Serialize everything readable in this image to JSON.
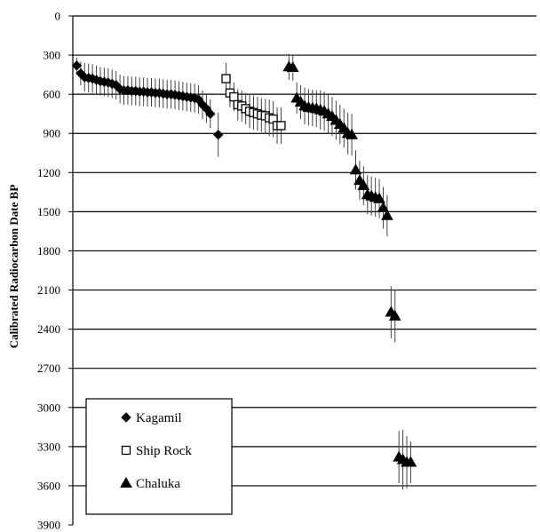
{
  "chart_data": {
    "type": "scatter",
    "title": "",
    "xlabel": "",
    "ylabel": "Calibrated Radiocarbon Date BP",
    "y_inverted": true,
    "ylim": [
      0,
      3900
    ],
    "yticks": [
      0,
      300,
      600,
      900,
      1200,
      1500,
      1800,
      2100,
      2400,
      2700,
      3000,
      3300,
      3600,
      3900
    ],
    "ytick_labels": [
      "0",
      "300",
      "600",
      "900",
      "1200",
      "1500",
      "1800",
      "2100",
      "2400",
      "2700",
      "3000",
      "3300",
      "3600",
      "3900"
    ],
    "xlim": [
      0,
      118
    ],
    "grid": "horizontal",
    "legend_position": "bottom-left",
    "series": [
      {
        "name": "Kagamil",
        "marker": "diamond",
        "filled": true,
        "points": [
          {
            "x": 1,
            "y": 380,
            "err": 60
          },
          {
            "x": 2,
            "y": 440,
            "err": 90
          },
          {
            "x": 3,
            "y": 470,
            "err": 110
          },
          {
            "x": 4,
            "y": 475,
            "err": 110
          },
          {
            "x": 5,
            "y": 480,
            "err": 110
          },
          {
            "x": 6,
            "y": 490,
            "err": 110
          },
          {
            "x": 7,
            "y": 500,
            "err": 110
          },
          {
            "x": 8,
            "y": 505,
            "err": 110
          },
          {
            "x": 9,
            "y": 510,
            "err": 110
          },
          {
            "x": 10,
            "y": 520,
            "err": 110
          },
          {
            "x": 11,
            "y": 530,
            "err": 110
          },
          {
            "x": 12,
            "y": 560,
            "err": 110
          },
          {
            "x": 13,
            "y": 570,
            "err": 110
          },
          {
            "x": 14,
            "y": 570,
            "err": 110
          },
          {
            "x": 15,
            "y": 575,
            "err": 110
          },
          {
            "x": 16,
            "y": 575,
            "err": 110
          },
          {
            "x": 17,
            "y": 580,
            "err": 110
          },
          {
            "x": 18,
            "y": 580,
            "err": 110
          },
          {
            "x": 19,
            "y": 585,
            "err": 110
          },
          {
            "x": 20,
            "y": 585,
            "err": 110
          },
          {
            "x": 21,
            "y": 590,
            "err": 110
          },
          {
            "x": 22,
            "y": 590,
            "err": 110
          },
          {
            "x": 23,
            "y": 595,
            "err": 110
          },
          {
            "x": 24,
            "y": 600,
            "err": 110
          },
          {
            "x": 25,
            "y": 600,
            "err": 110
          },
          {
            "x": 26,
            "y": 605,
            "err": 110
          },
          {
            "x": 27,
            "y": 610,
            "err": 110
          },
          {
            "x": 28,
            "y": 615,
            "err": 110
          },
          {
            "x": 29,
            "y": 620,
            "err": 110
          },
          {
            "x": 30,
            "y": 625,
            "err": 110
          },
          {
            "x": 31,
            "y": 630,
            "err": 110
          },
          {
            "x": 32,
            "y": 640,
            "err": 110
          },
          {
            "x": 33,
            "y": 680,
            "err": 110
          },
          {
            "x": 34,
            "y": 710,
            "err": 110
          },
          {
            "x": 35,
            "y": 750,
            "err": 110
          },
          {
            "x": 37,
            "y": 910,
            "err": 170
          }
        ]
      },
      {
        "name": "Ship Rock",
        "marker": "square",
        "filled": false,
        "points": [
          {
            "x": 39,
            "y": 480,
            "err": 120
          },
          {
            "x": 40,
            "y": 590,
            "err": 110
          },
          {
            "x": 41,
            "y": 620,
            "err": 110
          },
          {
            "x": 42,
            "y": 680,
            "err": 120
          },
          {
            "x": 43,
            "y": 690,
            "err": 120
          },
          {
            "x": 44,
            "y": 710,
            "err": 120
          },
          {
            "x": 45,
            "y": 730,
            "err": 130
          },
          {
            "x": 46,
            "y": 740,
            "err": 130
          },
          {
            "x": 47,
            "y": 750,
            "err": 130
          },
          {
            "x": 48,
            "y": 760,
            "err": 130
          },
          {
            "x": 49,
            "y": 765,
            "err": 130
          },
          {
            "x": 50,
            "y": 780,
            "err": 140
          },
          {
            "x": 51,
            "y": 790,
            "err": 140
          },
          {
            "x": 52,
            "y": 840,
            "err": 140
          },
          {
            "x": 53,
            "y": 840,
            "err": 140
          }
        ]
      },
      {
        "name": "Chaluka",
        "marker": "triangle",
        "filled": true,
        "points": [
          {
            "x": 55,
            "y": 390,
            "err": 100
          },
          {
            "x": 56,
            "y": 395,
            "err": 100
          },
          {
            "x": 57,
            "y": 630,
            "err": 120
          },
          {
            "x": 58,
            "y": 660,
            "err": 130
          },
          {
            "x": 59,
            "y": 690,
            "err": 140
          },
          {
            "x": 60,
            "y": 700,
            "err": 140
          },
          {
            "x": 61,
            "y": 705,
            "err": 140
          },
          {
            "x": 62,
            "y": 710,
            "err": 140
          },
          {
            "x": 63,
            "y": 720,
            "err": 150
          },
          {
            "x": 64,
            "y": 730,
            "err": 150
          },
          {
            "x": 65,
            "y": 750,
            "err": 150
          },
          {
            "x": 66,
            "y": 770,
            "err": 150
          },
          {
            "x": 67,
            "y": 800,
            "err": 150
          },
          {
            "x": 68,
            "y": 830,
            "err": 150
          },
          {
            "x": 69,
            "y": 860,
            "err": 150
          },
          {
            "x": 70,
            "y": 900,
            "err": 160
          },
          {
            "x": 71,
            "y": 910,
            "err": 160
          },
          {
            "x": 72,
            "y": 1180,
            "err": 150
          },
          {
            "x": 73,
            "y": 1260,
            "err": 150
          },
          {
            "x": 74,
            "y": 1300,
            "err": 150
          },
          {
            "x": 75,
            "y": 1370,
            "err": 150
          },
          {
            "x": 76,
            "y": 1380,
            "err": 150
          },
          {
            "x": 77,
            "y": 1390,
            "err": 150
          },
          {
            "x": 78,
            "y": 1400,
            "err": 150
          },
          {
            "x": 79,
            "y": 1470,
            "err": 160
          },
          {
            "x": 80,
            "y": 1530,
            "err": 160
          },
          {
            "x": 81,
            "y": 2270,
            "err": 200
          },
          {
            "x": 82,
            "y": 2300,
            "err": 200
          },
          {
            "x": 83,
            "y": 3380,
            "err": 200
          },
          {
            "x": 84,
            "y": 3400,
            "err": 230
          },
          {
            "x": 85,
            "y": 3420,
            "err": 200
          },
          {
            "x": 86,
            "y": 3420,
            "err": 160
          }
        ]
      }
    ]
  }
}
